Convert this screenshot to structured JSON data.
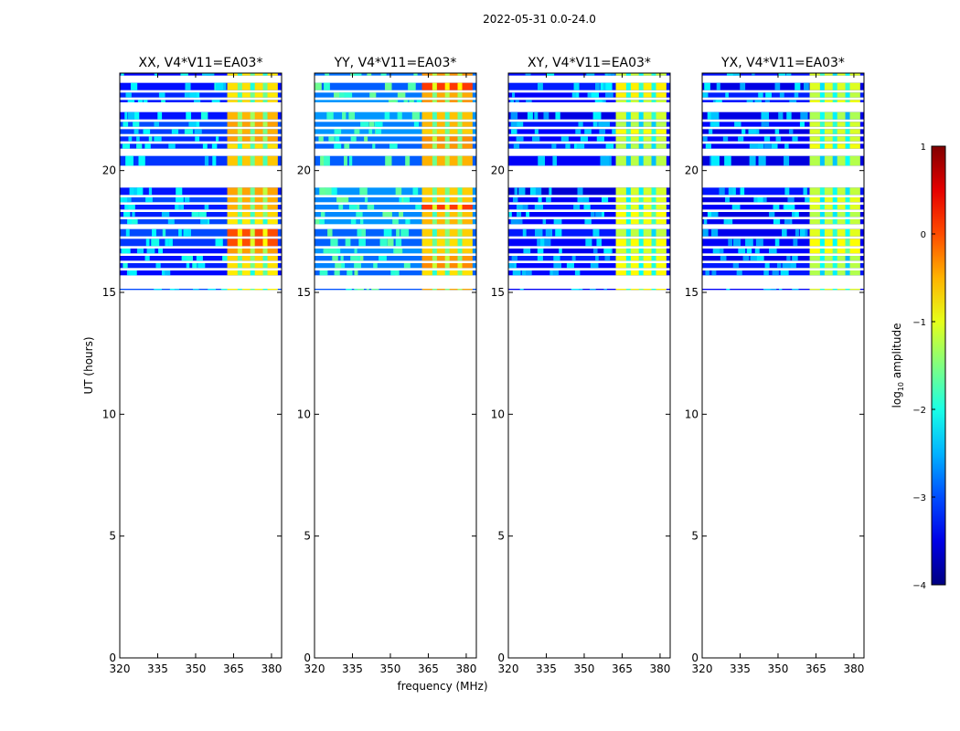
{
  "figure": {
    "suptitle": "2022-05-31 0.0-24.0",
    "ylabel": "UT (hours)",
    "xlabel": "frequency (MHz)",
    "colorbar": {
      "label_prefix": "log",
      "label_sub": "10",
      "label_suffix": " amplitude",
      "ticks": [
        1,
        0,
        -1,
        -2,
        -3,
        -4
      ],
      "tick_labels": [
        "1",
        "0",
        "−1",
        "−2",
        "−3",
        "−4"
      ],
      "range": [
        -4,
        1
      ],
      "colormap": "jet"
    }
  },
  "chart_data": [
    {
      "type": "heatmap",
      "title": "XX, V4*V11=EA03*",
      "xlim": [
        320,
        384
      ],
      "ylim": [
        0,
        24
      ],
      "xticks": [
        320,
        335,
        350,
        365,
        380
      ],
      "yticks": [
        0,
        5,
        10,
        15,
        20
      ],
      "band_low": -3.2,
      "band_high": -0.6,
      "highlight_rows": [
        17.3,
        17.0
      ],
      "highlight_value": 0.0
    },
    {
      "type": "heatmap",
      "title": "YY, V4*V11=EA03*",
      "xlim": [
        320,
        384
      ],
      "ylim": [
        0,
        24
      ],
      "xticks": [
        320,
        335,
        350,
        365,
        380
      ],
      "yticks": [
        0,
        5,
        10,
        15,
        20
      ],
      "band_low": -2.8,
      "band_high": -0.5,
      "highlight_rows": [
        23.5,
        18.5
      ],
      "highlight_value": 0.1
    },
    {
      "type": "heatmap",
      "title": "XY, V4*V11=EA03*",
      "xlim": [
        320,
        384
      ],
      "ylim": [
        0,
        24
      ],
      "xticks": [
        320,
        335,
        350,
        365,
        380
      ],
      "yticks": [
        0,
        5,
        10,
        15,
        20
      ],
      "band_low": -3.4,
      "band_high": -1.0,
      "highlight_rows": [],
      "highlight_value": -0.6
    },
    {
      "type": "heatmap",
      "title": "YX, V4*V11=EA03*",
      "xlim": [
        320,
        384
      ],
      "ylim": [
        0,
        24
      ],
      "xticks": [
        320,
        335,
        350,
        365,
        380
      ],
      "yticks": [
        0,
        5,
        10,
        15,
        20
      ],
      "band_low": -3.4,
      "band_high": -1.1,
      "highlight_rows": [],
      "highlight_value": -0.6
    }
  ],
  "common_data": {
    "data_rows_ut": [
      [
        23.9,
        24.0
      ],
      [
        23.3,
        23.6
      ],
      [
        23.0,
        23.2
      ],
      [
        22.8,
        22.9
      ],
      [
        22.1,
        22.4
      ],
      [
        21.8,
        22.0
      ],
      [
        21.5,
        21.7
      ],
      [
        21.2,
        21.4
      ],
      [
        20.9,
        21.1
      ],
      [
        20.2,
        20.6
      ],
      [
        19.0,
        19.3
      ],
      [
        18.7,
        18.9
      ],
      [
        18.4,
        18.6
      ],
      [
        18.1,
        18.3
      ],
      [
        17.8,
        18.0
      ],
      [
        17.3,
        17.6
      ],
      [
        16.9,
        17.2
      ],
      [
        16.6,
        16.8
      ],
      [
        16.3,
        16.5
      ],
      [
        16.0,
        16.2
      ],
      [
        15.7,
        15.9
      ],
      [
        15.1,
        15.15
      ]
    ],
    "band_freq_mhz": [
      362.5,
      382.5
    ],
    "band_gap_freq_mhz": [
      367.5,
      372.5,
      377.5
    ]
  }
}
